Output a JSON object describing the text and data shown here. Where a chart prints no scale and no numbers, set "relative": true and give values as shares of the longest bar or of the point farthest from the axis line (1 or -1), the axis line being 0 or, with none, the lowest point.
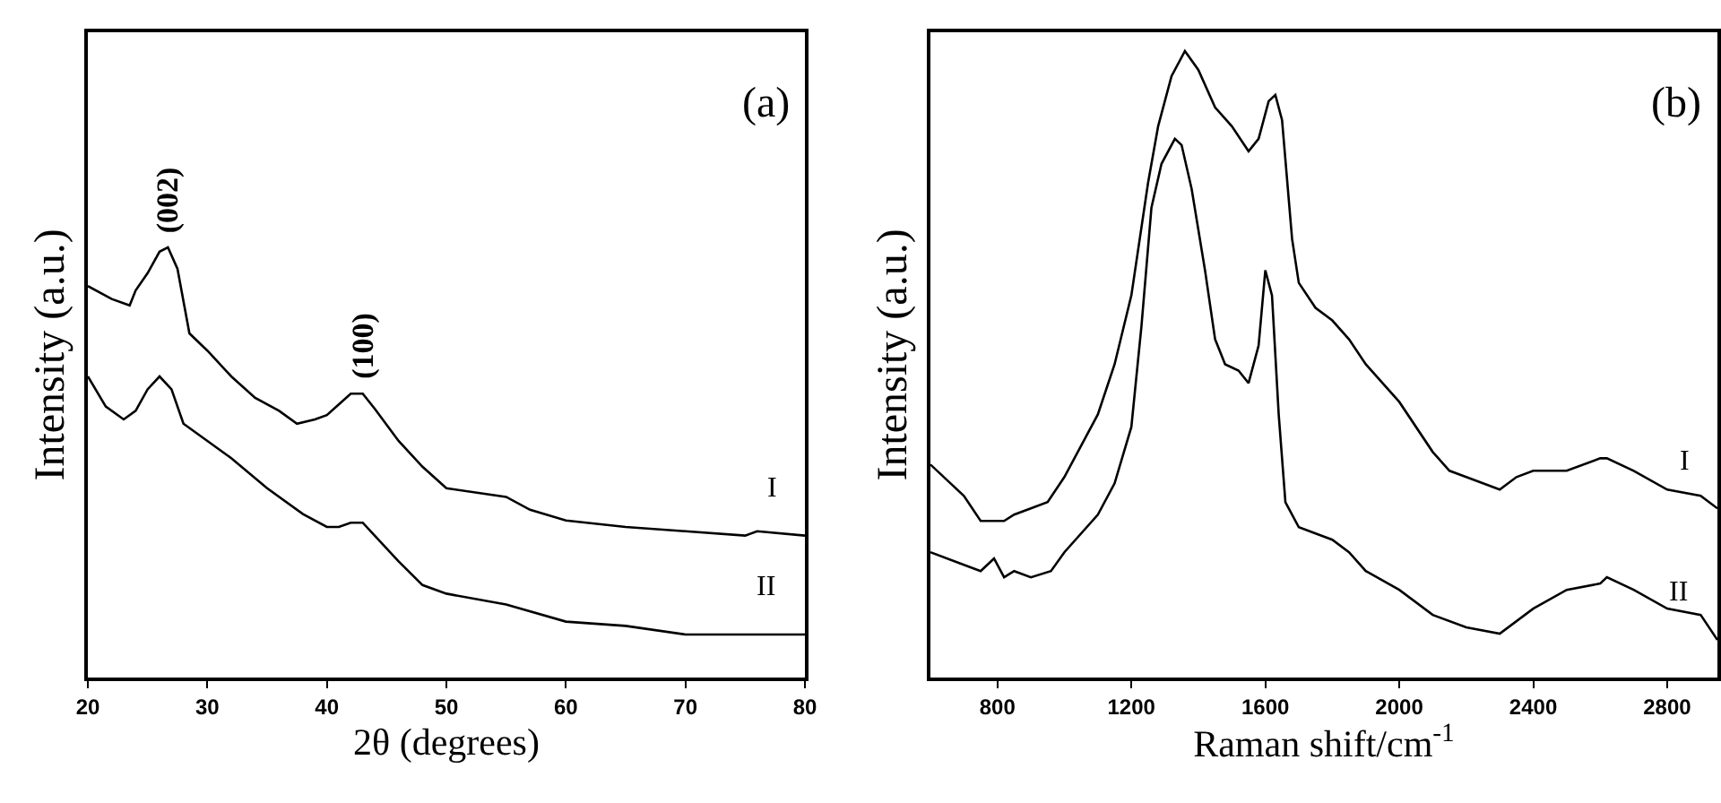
{
  "chart_data": [
    {
      "type": "line",
      "title": "(a)",
      "xlabel": "2θ (degrees)",
      "ylabel": "Intensity (a.u.)",
      "relative": true,
      "tick_labels": "x",
      "grid": false,
      "legend": false,
      "marker": "none",
      "line_style": "solid",
      "xlim": [
        20,
        80
      ],
      "xticks": [
        20,
        30,
        40,
        50,
        60,
        70,
        80
      ],
      "annotations": [
        {
          "text": "(002)",
          "x": 26.7,
          "y": 1.0
        },
        {
          "text": "(100)",
          "x": 43,
          "y": 0.66
        }
      ],
      "series": [
        {
          "name": "I",
          "color": "#000000",
          "x": [
            20,
            22,
            23.5,
            24,
            25,
            26,
            26.7,
            27.5,
            28.5,
            30,
            32,
            34,
            36,
            37.5,
            39,
            40,
            41,
            42,
            43,
            44,
            46,
            48,
            50,
            55,
            57,
            60,
            65,
            70,
            75,
            76,
            80
          ],
          "values": [
            0.91,
            0.88,
            0.865,
            0.9,
            0.94,
            0.99,
            1.0,
            0.95,
            0.8,
            0.76,
            0.7,
            0.65,
            0.62,
            0.59,
            0.6,
            0.61,
            0.635,
            0.66,
            0.66,
            0.625,
            0.55,
            0.49,
            0.44,
            0.42,
            0.39,
            0.365,
            0.35,
            0.34,
            0.33,
            0.34,
            0.33
          ]
        },
        {
          "name": "II",
          "color": "#000000",
          "x": [
            20,
            21.5,
            23,
            24,
            25,
            26,
            27,
            28,
            30,
            32,
            35,
            38,
            40,
            41,
            42,
            43,
            44,
            46,
            48,
            50,
            55,
            60,
            65,
            70,
            75,
            80
          ],
          "values": [
            0.7,
            0.63,
            0.6,
            0.62,
            0.67,
            0.7,
            0.67,
            0.59,
            0.55,
            0.51,
            0.44,
            0.38,
            0.35,
            0.35,
            0.36,
            0.36,
            0.33,
            0.27,
            0.215,
            0.195,
            0.17,
            0.13,
            0.12,
            0.1,
            0.1,
            0.1
          ]
        }
      ]
    },
    {
      "type": "line",
      "title": "(b)",
      "xlabel": "Raman shift/cm$^{-1}$",
      "ylabel": "Intensity (a.u.)",
      "relative": true,
      "tick_labels": "x",
      "grid": false,
      "legend": false,
      "marker": "none",
      "line_style": "solid",
      "xlim": [
        600,
        2950
      ],
      "xticks": [
        800,
        1200,
        1600,
        2000,
        2400,
        2800
      ],
      "series": [
        {
          "name": "I",
          "color": "#000000",
          "x": [
            600,
            700,
            750,
            800,
            820,
            850,
            900,
            950,
            1000,
            1050,
            1100,
            1150,
            1200,
            1250,
            1280,
            1320,
            1360,
            1400,
            1450,
            1500,
            1550,
            1580,
            1610,
            1630,
            1650,
            1680,
            1700,
            1750,
            1800,
            1850,
            1900,
            2000,
            2100,
            2150,
            2200,
            2300,
            2350,
            2400,
            2500,
            2600,
            2620,
            2700,
            2800,
            2900,
            2950
          ],
          "values": [
            0.34,
            0.29,
            0.25,
            0.25,
            0.25,
            0.26,
            0.27,
            0.28,
            0.32,
            0.37,
            0.42,
            0.5,
            0.61,
            0.79,
            0.88,
            0.96,
            1.0,
            0.97,
            0.91,
            0.88,
            0.84,
            0.86,
            0.92,
            0.93,
            0.89,
            0.7,
            0.63,
            0.59,
            0.57,
            0.54,
            0.5,
            0.44,
            0.36,
            0.33,
            0.32,
            0.3,
            0.32,
            0.33,
            0.33,
            0.35,
            0.35,
            0.33,
            0.3,
            0.29,
            0.27
          ]
        },
        {
          "name": "II",
          "color": "#000000",
          "x": [
            600,
            700,
            750,
            790,
            820,
            850,
            900,
            960,
            1000,
            1100,
            1150,
            1200,
            1230,
            1260,
            1290,
            1330,
            1350,
            1380,
            1420,
            1450,
            1480,
            1520,
            1550,
            1580,
            1600,
            1620,
            1640,
            1660,
            1700,
            1750,
            1800,
            1850,
            1900,
            2000,
            2100,
            2200,
            2300,
            2400,
            2500,
            2600,
            2620,
            2700,
            2800,
            2900,
            2950
          ],
          "values": [
            0.2,
            0.18,
            0.17,
            0.19,
            0.16,
            0.17,
            0.16,
            0.17,
            0.2,
            0.26,
            0.31,
            0.4,
            0.56,
            0.75,
            0.82,
            0.86,
            0.85,
            0.78,
            0.65,
            0.54,
            0.5,
            0.49,
            0.47,
            0.53,
            0.65,
            0.61,
            0.42,
            0.28,
            0.24,
            0.23,
            0.22,
            0.2,
            0.17,
            0.14,
            0.1,
            0.08,
            0.07,
            0.11,
            0.14,
            0.15,
            0.16,
            0.14,
            0.11,
            0.1,
            0.06
          ]
        }
      ]
    }
  ]
}
